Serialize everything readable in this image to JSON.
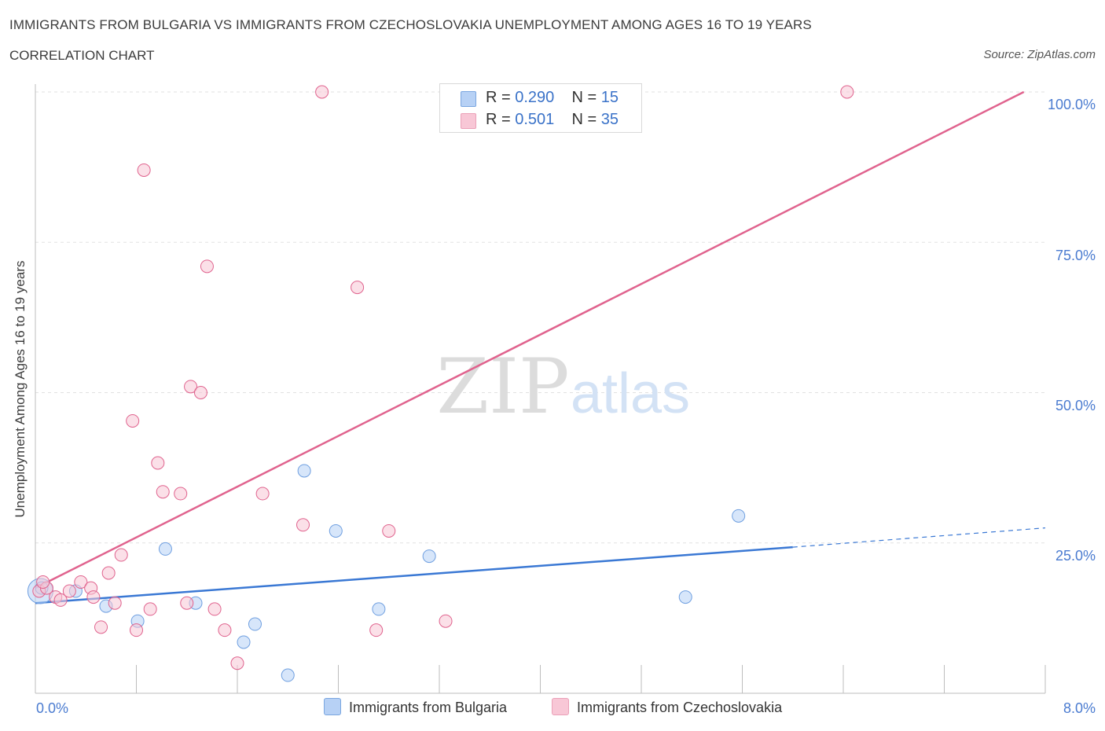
{
  "header": {
    "title": "IMMIGRANTS FROM BULGARIA VS IMMIGRANTS FROM CZECHOSLOVAKIA UNEMPLOYMENT AMONG AGES 16 TO 19 YEARS",
    "subtitle": "CORRELATION CHART",
    "source": "Source: ZipAtlas.com"
  },
  "watermark": {
    "zip": "ZIP",
    "atlas": "atlas"
  },
  "legend": {
    "rows": [
      {
        "r_label": "R =",
        "r_value": "0.290",
        "n_label": "N =",
        "n_value": "15",
        "color": "#b7d1f5"
      },
      {
        "r_label": "R =",
        "r_value": "0.501",
        "n_label": "N =",
        "n_value": "35",
        "color": "#f8c7d6"
      }
    ]
  },
  "bottom_legend": {
    "items": [
      {
        "label": "Immigrants from Bulgaria",
        "color": "#b7d1f5"
      },
      {
        "label": "Immigrants from Czechoslovakia",
        "color": "#f8c7d6"
      }
    ]
  },
  "chart_data": {
    "type": "scatter",
    "title": "IMMIGRANTS FROM BULGARIA VS IMMIGRANTS FROM CZECHOSLOVAKIA UNEMPLOYMENT AMONG AGES 16 TO 19 YEARS",
    "xlabel": "",
    "ylabel": "Unemployment Among Ages 16 to 19 years",
    "xlim": [
      0,
      8
    ],
    "ylim": [
      0,
      100
    ],
    "x_tick_labels": [
      "0.0%",
      "8.0%"
    ],
    "y_tick_labels": [
      "100.0%",
      "75.0%",
      "50.0%",
      "25.0%"
    ],
    "y_ticks": [
      100,
      75,
      50,
      25
    ],
    "grid": true,
    "legend_position": "top-center",
    "series": [
      {
        "name": "Immigrants from Bulgaria",
        "color": "#6f9fe0",
        "fill": "#b7d1f5",
        "R": 0.29,
        "N": 15,
        "points": [
          [
            0.05,
            17.5
          ],
          [
            0.32,
            17.0
          ],
          [
            0.56,
            14.5
          ],
          [
            0.81,
            12.0
          ],
          [
            1.03,
            24.0
          ],
          [
            1.27,
            15.0
          ],
          [
            1.65,
            8.5
          ],
          [
            1.74,
            11.5
          ],
          [
            2.0,
            3.0
          ],
          [
            2.13,
            37.0
          ],
          [
            2.38,
            27.0
          ],
          [
            2.72,
            14.0
          ],
          [
            3.12,
            22.8
          ],
          [
            5.15,
            16.0
          ],
          [
            5.57,
            29.5
          ]
        ],
        "trend": {
          "x0": 0,
          "y0": 15.0,
          "x1": 6.0,
          "y1": 24.3,
          "dashed_to_x": 8.0,
          "dashed_to_y": 27.5
        }
      },
      {
        "name": "Immigrants from Czechoslovakia",
        "color": "#e0638e",
        "fill": "#f8c7d6",
        "R": 0.501,
        "N": 35,
        "points": [
          [
            0.03,
            17.0
          ],
          [
            0.09,
            17.5
          ],
          [
            0.16,
            16.0
          ],
          [
            0.2,
            15.5
          ],
          [
            0.27,
            17.0
          ],
          [
            0.36,
            18.5
          ],
          [
            0.44,
            17.5
          ],
          [
            0.46,
            16.0
          ],
          [
            0.52,
            11.0
          ],
          [
            0.58,
            20.0
          ],
          [
            0.63,
            15.0
          ],
          [
            0.68,
            23.0
          ],
          [
            0.77,
            45.3
          ],
          [
            0.8,
            10.5
          ],
          [
            0.86,
            87.0
          ],
          [
            0.91,
            14.0
          ],
          [
            0.97,
            38.3
          ],
          [
            1.01,
            33.5
          ],
          [
            1.15,
            33.2
          ],
          [
            1.2,
            15.0
          ],
          [
            1.23,
            51.0
          ],
          [
            1.31,
            50.0
          ],
          [
            1.36,
            71.0
          ],
          [
            1.42,
            14.0
          ],
          [
            1.5,
            10.5
          ],
          [
            1.6,
            5.0
          ],
          [
            1.8,
            33.2
          ],
          [
            2.12,
            28.0
          ],
          [
            2.27,
            100.0
          ],
          [
            2.55,
            67.5
          ],
          [
            2.7,
            10.5
          ],
          [
            2.8,
            27.0
          ],
          [
            3.25,
            12.0
          ],
          [
            6.43,
            100.0
          ],
          [
            0.06,
            18.5
          ]
        ],
        "trend": {
          "x0": 0,
          "y0": 17.5,
          "x1": 7.83,
          "y1": 100.0
        }
      }
    ]
  }
}
